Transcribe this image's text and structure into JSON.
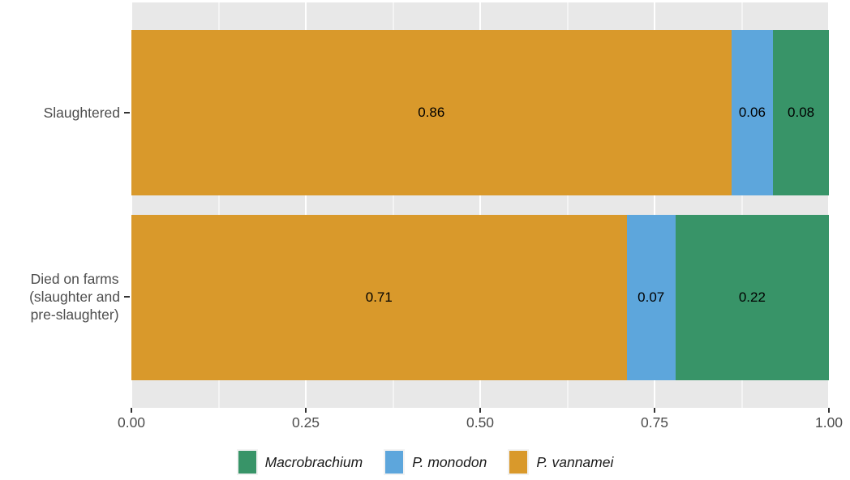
{
  "chart_data": {
    "type": "bar",
    "orientation": "horizontal",
    "stacked": true,
    "title": "",
    "categories": [
      "Slaughtered",
      "Died on farms\n(slaughter and\npre-slaughter)"
    ],
    "series": [
      {
        "name": "P. vannamei",
        "color": "#D9992B",
        "values": [
          0.86,
          0.71
        ],
        "labels": [
          "0.86",
          "0.71"
        ]
      },
      {
        "name": "P. monodon",
        "color": "#5DA6DC",
        "values": [
          0.06,
          0.07
        ],
        "labels": [
          "0.06",
          "0.07"
        ]
      },
      {
        "name": "Macrobrachium",
        "color": "#389468",
        "values": [
          0.08,
          0.22
        ],
        "labels": [
          "0.08",
          "0.22"
        ]
      }
    ],
    "x_axis": {
      "range": [
        0,
        1
      ],
      "ticks": [
        {
          "value": 0,
          "label": "0.00"
        },
        {
          "value": 0.25,
          "label": "0.25"
        },
        {
          "value": 0.5,
          "label": "0.50"
        },
        {
          "value": 0.75,
          "label": "0.75"
        },
        {
          "value": 1,
          "label": "1.00"
        }
      ],
      "grid_major": true,
      "grid_minor": true
    },
    "legend": {
      "position": "bottom",
      "italic": true,
      "items": [
        {
          "label": "Macrobrachium",
          "color": "#389468"
        },
        {
          "label": "P. monodon",
          "color": "#5DA6DC"
        },
        {
          "label": "P. vannamei",
          "color": "#D9992B"
        }
      ]
    }
  },
  "styles": {
    "background": "#FFFFFF",
    "panel_bg": "#E8E8E8",
    "grid_color": "#FFFFFF",
    "axis_text_color": "#4D4D4D",
    "tick_color": "#333333",
    "value_label_color": "#000000",
    "legend_text_color": "#1A1A1A"
  }
}
